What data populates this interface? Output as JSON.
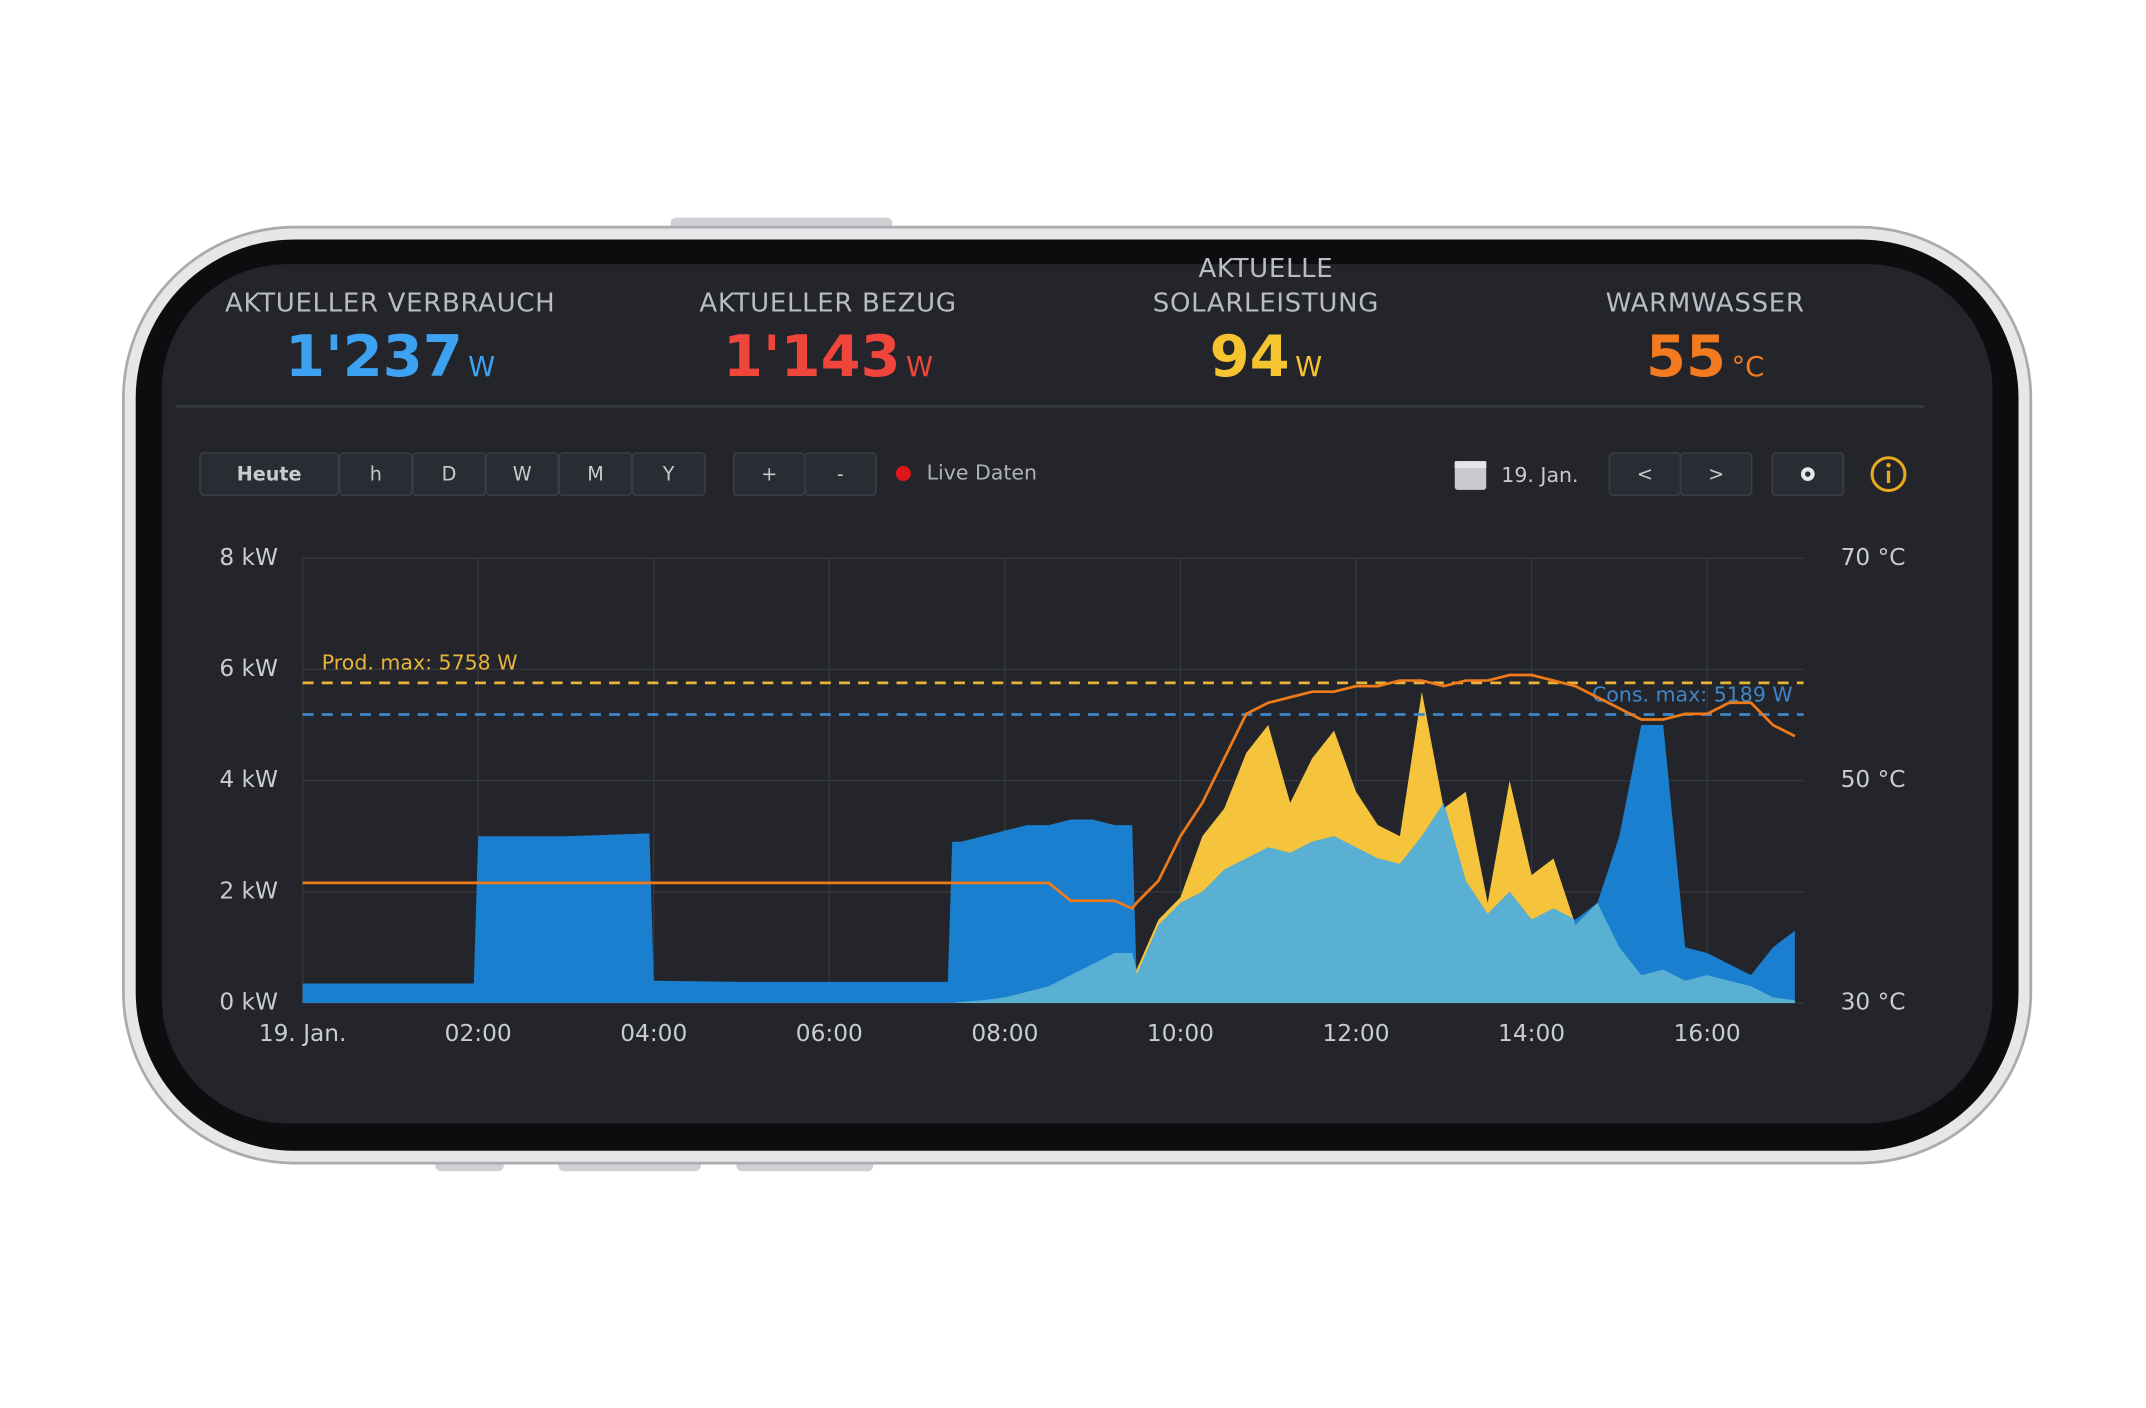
{
  "header": {
    "metrics": [
      {
        "label": [
          "AKTUELLER VERBRAUCH"
        ],
        "value": "1'237",
        "unit": "W",
        "color": "#3ea2f2"
      },
      {
        "label": [
          "AKTUELLER BEZUG"
        ],
        "value": "1'143",
        "unit": "W",
        "color": "#f0453a"
      },
      {
        "label": [
          "AKTUELLE",
          "SOLARLEISTUNG"
        ],
        "value": "94",
        "unit": "W",
        "color": "#f6c42e"
      },
      {
        "label": [
          "WARMWASSER"
        ],
        "value": "55",
        "unit": "°C",
        "color": "#f47a1f"
      }
    ]
  },
  "toolbar": {
    "periods": [
      "Heute",
      "h",
      "D",
      "W",
      "M",
      "Y"
    ],
    "zoom": [
      "+",
      "-"
    ],
    "live": "Live Daten",
    "date": "19. Jan.",
    "nav": [
      "<",
      ">"
    ]
  },
  "chart_data": {
    "type": "area",
    "x": [
      0,
      1,
      1.95,
      2,
      3,
      3.95,
      4,
      5,
      6,
      7.35,
      7.4,
      7.5,
      7.75,
      8,
      8.25,
      8.5,
      8.75,
      9,
      9.25,
      9.45,
      9.5,
      9.75,
      10,
      10.25,
      10.5,
      10.75,
      11,
      11.25,
      11.5,
      11.75,
      12,
      12.25,
      12.5,
      12.75,
      13,
      13.25,
      13.5,
      13.75,
      14,
      14.25,
      14.5,
      14.75,
      15,
      15.25,
      15.5,
      15.75,
      16,
      16.25,
      16.5,
      16.75,
      17
    ],
    "series": [
      {
        "color": "#1a7fcf",
        "values": [
          0.35,
          0.35,
          0.35,
          3.0,
          3.0,
          3.05,
          0.4,
          0.38,
          0.38,
          0.38,
          2.9,
          2.9,
          3.0,
          3.1,
          3.2,
          3.2,
          3.3,
          3.3,
          3.2,
          3.2,
          0.5,
          1.4,
          1.8,
          2.0,
          2.4,
          2.6,
          2.8,
          2.7,
          2.9,
          3.0,
          2.8,
          2.6,
          2.5,
          3.0,
          3.6,
          2.2,
          1.6,
          2.0,
          1.5,
          1.7,
          1.5,
          1.8,
          3.0,
          5.0,
          5.0,
          1.0,
          0.9,
          0.7,
          0.5,
          1.0,
          1.3
        ]
      },
      {
        "color": "#f6c33d",
        "values": [
          0,
          0,
          0,
          0,
          0,
          0,
          0,
          0,
          0,
          0,
          0,
          0.02,
          0.05,
          0.1,
          0.2,
          0.3,
          0.5,
          0.7,
          0.9,
          0.9,
          0.6,
          1.5,
          1.9,
          3.0,
          3.5,
          4.5,
          5.0,
          3.6,
          4.4,
          4.9,
          3.8,
          3.2,
          3.0,
          5.6,
          3.5,
          3.8,
          1.8,
          4.0,
          2.3,
          2.6,
          1.4,
          1.8,
          1.0,
          0.5,
          0.6,
          0.4,
          0.5,
          0.4,
          0.3,
          0.1,
          0.05
        ]
      },
      {
        "color": "#ef7a1a",
        "axis": "y2",
        "values": [
          40.8,
          40.8,
          40.8,
          40.8,
          40.8,
          40.8,
          40.8,
          40.8,
          40.8,
          40.8,
          40.8,
          40.8,
          40.8,
          40.8,
          40.8,
          40.8,
          39.2,
          39.2,
          39.2,
          38.5,
          39,
          41,
          45,
          48,
          52,
          56,
          57,
          57.5,
          58,
          58,
          58.5,
          58.5,
          59,
          59,
          58.5,
          59,
          59,
          59.5,
          59.5,
          59,
          58.5,
          57.5,
          56.5,
          55.5,
          55.5,
          56,
          56,
          57,
          57,
          55,
          54
        ]
      }
    ],
    "overlap_color": "#5ab0d2",
    "xlim": [
      0,
      17.1
    ],
    "xticks": [
      {
        "value": 0,
        "label": "19. Jan."
      },
      {
        "value": 2,
        "label": "02:00"
      },
      {
        "value": 4,
        "label": "04:00"
      },
      {
        "value": 6,
        "label": "06:00"
      },
      {
        "value": 8,
        "label": "08:00"
      },
      {
        "value": 10,
        "label": "10:00"
      },
      {
        "value": 12,
        "label": "12:00"
      },
      {
        "value": 14,
        "label": "14:00"
      },
      {
        "value": 16,
        "label": "16:00"
      }
    ],
    "ylim": [
      0,
      8
    ],
    "yticks": [
      {
        "value": 0,
        "label": "0 kW"
      },
      {
        "value": 2,
        "label": "2 kW"
      },
      {
        "value": 4,
        "label": "4 kW"
      },
      {
        "value": 6,
        "label": "6 kW"
      },
      {
        "value": 8,
        "label": "8 kW"
      }
    ],
    "y2lim": [
      30,
      70
    ],
    "y2ticks": [
      {
        "value": 30,
        "label": "30 °C"
      },
      {
        "value": 50,
        "label": "50 °C"
      },
      {
        "value": 70,
        "label": "70 °C"
      }
    ],
    "grid": true,
    "annotations": [
      {
        "label": "Prod. max: 5758 W",
        "value": 5.758,
        "color": "#e9b43a"
      },
      {
        "label": "Cons. max: 5189 W",
        "value": 5.189,
        "color": "#3f86c8"
      }
    ]
  }
}
